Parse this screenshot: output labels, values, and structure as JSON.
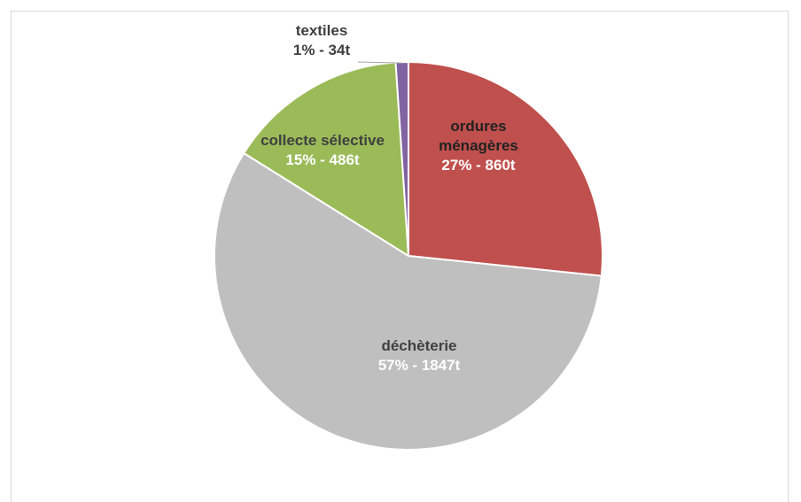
{
  "chart_data": {
    "type": "pie",
    "slices": [
      {
        "name": "ordures ménagères",
        "name_lines": [
          "ordures",
          "ménagères"
        ],
        "value": 860,
        "value_label": "27% - 860t",
        "color": "#c0504d",
        "name_color": "#222222",
        "value_color": "#ffffff"
      },
      {
        "name": "déchèterie",
        "name_lines": [
          "déchèterie"
        ],
        "value": 1847,
        "value_label": "57% -  1847t",
        "color": "#bfbfbf",
        "name_color": "#404040",
        "value_color": "#ffffff"
      },
      {
        "name": "collecte sélective",
        "name_lines": [
          "collecte sélective"
        ],
        "value": 486,
        "value_label": "15% - 486t",
        "color": "#9bbb59",
        "name_color": "#404040",
        "value_color": "#ffffff"
      },
      {
        "name": "textiles",
        "name_lines": [
          "textiles"
        ],
        "value": 34,
        "value_label": "1% - 34t",
        "color": "#8064a2",
        "name_color": "#404040",
        "value_color": "#404040"
      }
    ],
    "start": "12 o'clock",
    "direction": "clockwise",
    "legend": "none"
  }
}
